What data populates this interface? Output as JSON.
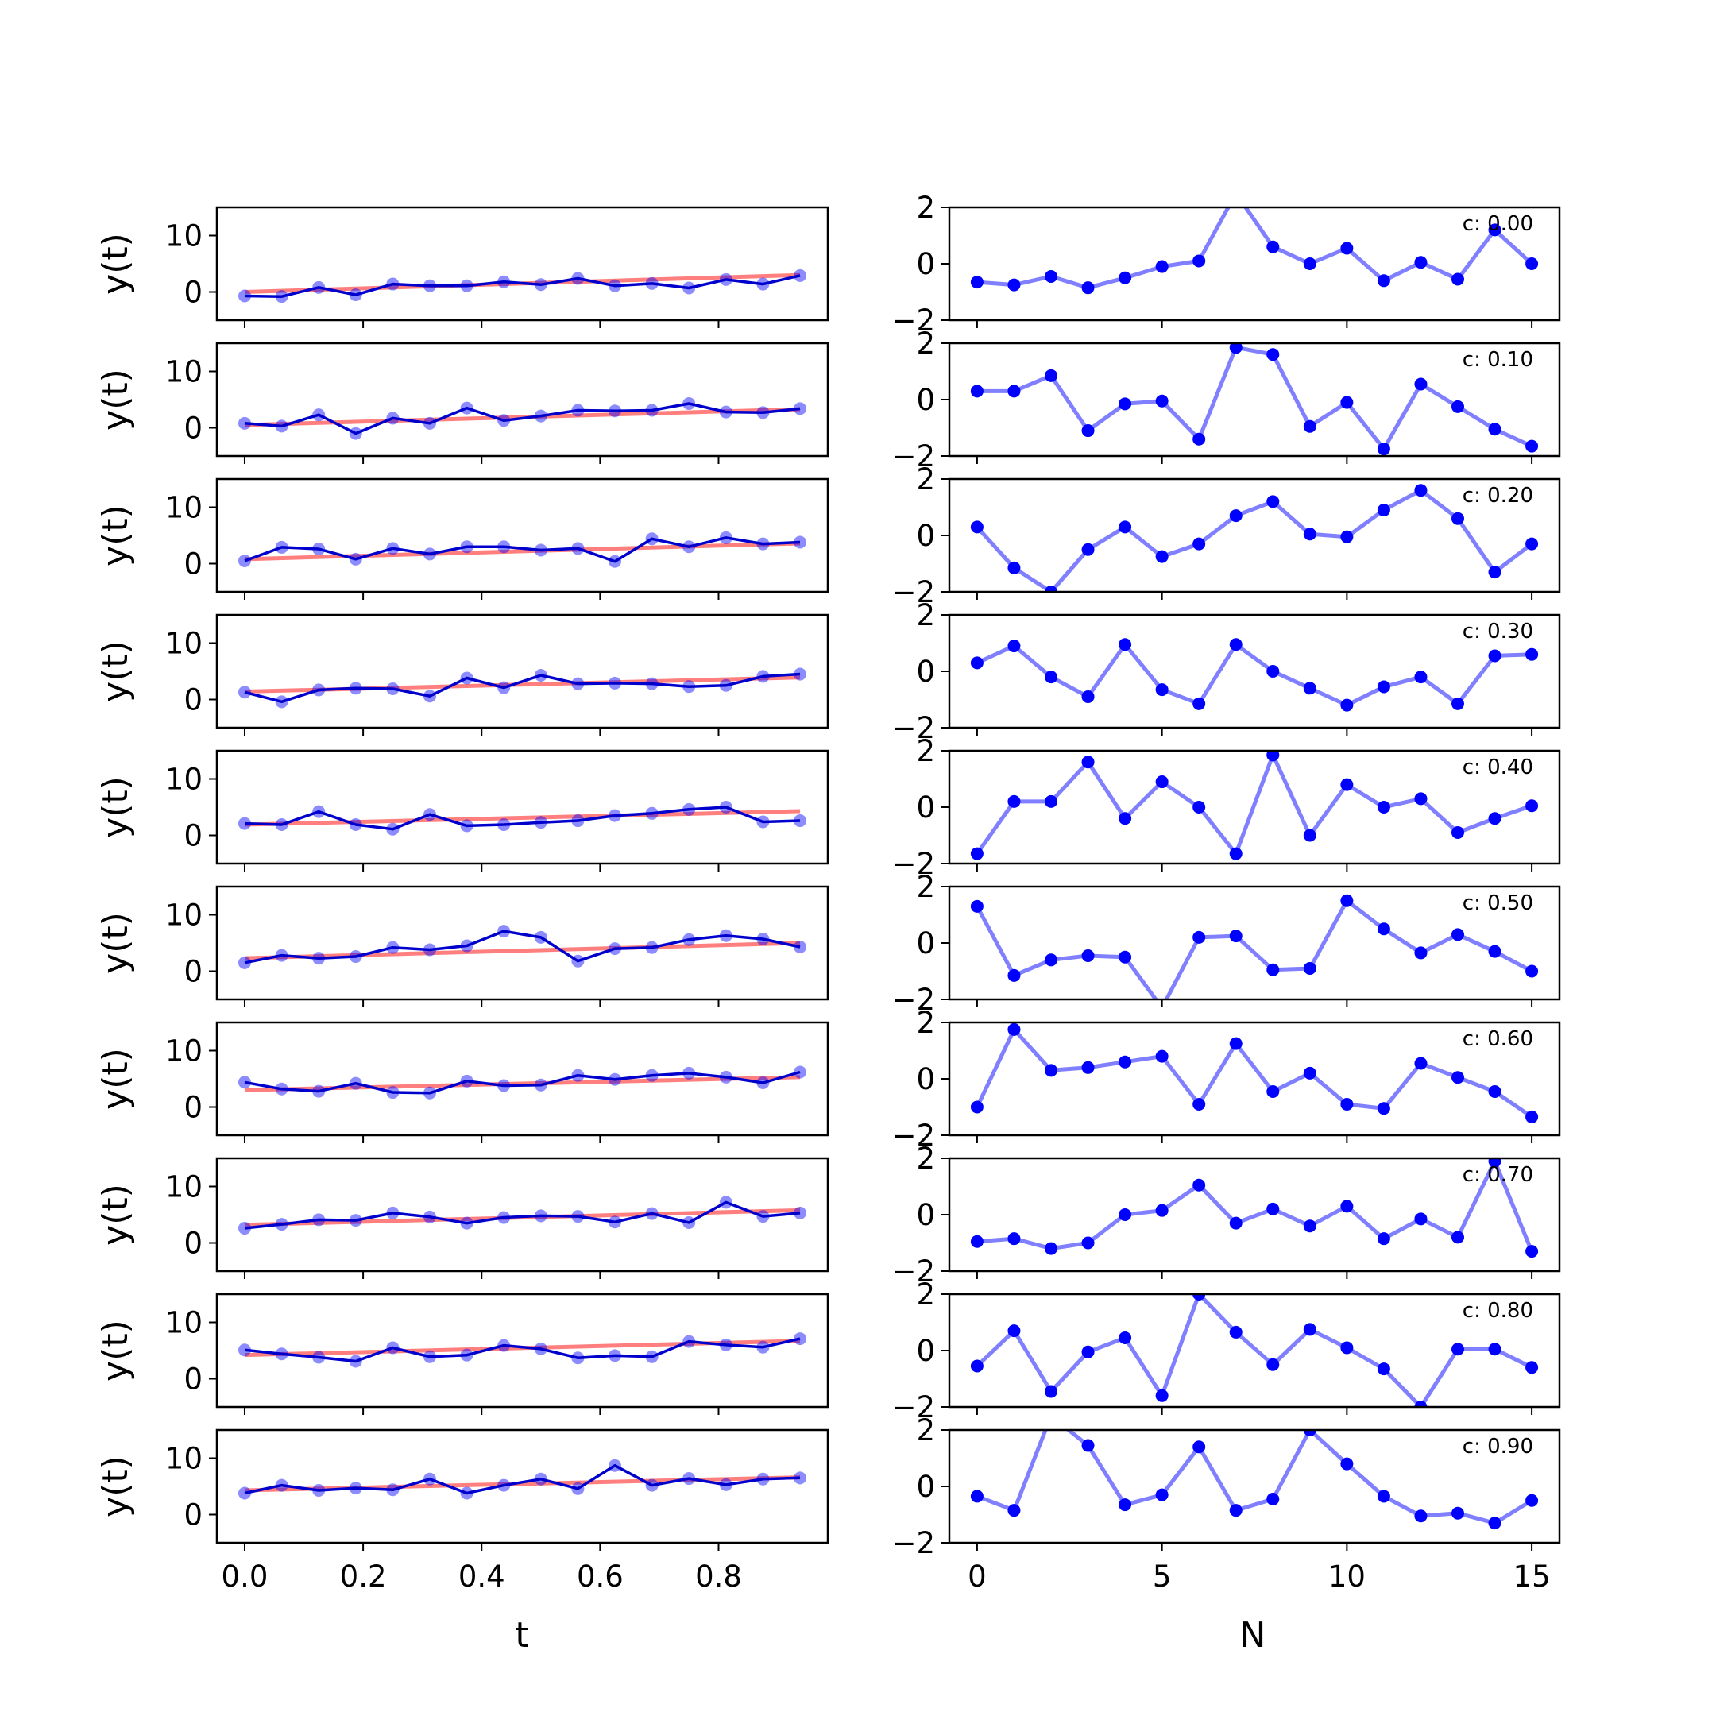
{
  "chart_data": {
    "type": "line",
    "t": [
      0.0,
      0.0625,
      0.125,
      0.1875,
      0.25,
      0.3125,
      0.375,
      0.4375,
      0.5,
      0.5625,
      0.625,
      0.6875,
      0.75,
      0.8125,
      0.875,
      0.9375
    ],
    "left": {
      "xlabel": "t",
      "ylabel": "y(t)",
      "ylim": [
        -5,
        15
      ],
      "xlim": [
        -0.0469,
        0.9844
      ],
      "yticks": [
        0,
        10
      ],
      "xticks": [
        0.0,
        0.2,
        0.4,
        0.6,
        0.8
      ],
      "xtick_labels": [
        "0.0",
        "0.2",
        "0.4",
        "0.6",
        "0.8"
      ],
      "ytick_labels": [
        "0",
        "10"
      ],
      "panels": [
        {
          "trend": [
            0.0,
            3.0
          ],
          "y": [
            -0.7,
            -0.8,
            0.8,
            -0.5,
            1.4,
            1.1,
            1.1,
            1.8,
            1.3,
            2.4,
            1.1,
            1.5,
            0.7,
            2.2,
            1.4,
            2.9
          ]
        },
        {
          "trend": [
            0.5,
            3.3
          ],
          "y": [
            0.8,
            0.3,
            2.3,
            -1.0,
            1.7,
            0.8,
            3.5,
            1.3,
            2.1,
            3.1,
            3.0,
            3.1,
            4.3,
            2.8,
            2.7,
            3.4
          ]
        },
        {
          "trend": [
            0.8,
            3.6
          ],
          "y": [
            0.5,
            2.9,
            2.6,
            0.8,
            2.7,
            1.7,
            3.0,
            3.0,
            2.4,
            2.7,
            0.4,
            4.4,
            3.0,
            4.6,
            3.5,
            3.8
          ]
        },
        {
          "trend": [
            1.4,
            3.9
          ],
          "y": [
            1.3,
            -0.4,
            1.7,
            2.0,
            1.9,
            0.6,
            3.8,
            2.1,
            4.3,
            2.8,
            2.9,
            2.8,
            2.3,
            2.5,
            4.1,
            4.5
          ]
        },
        {
          "trend": [
            1.9,
            4.3
          ],
          "y": [
            2.1,
            1.9,
            4.2,
            1.9,
            1.1,
            3.7,
            1.7,
            1.9,
            2.3,
            2.6,
            3.5,
            3.9,
            4.6,
            5.0,
            2.4,
            2.6
          ]
        },
        {
          "trend": [
            2.3,
            5.0
          ],
          "y": [
            1.5,
            2.8,
            2.3,
            2.6,
            4.2,
            3.8,
            4.5,
            7.1,
            6.0,
            1.8,
            4.0,
            4.2,
            5.6,
            6.3,
            5.7,
            4.3
          ]
        },
        {
          "trend": [
            3.0,
            5.3
          ],
          "y": [
            4.4,
            3.2,
            2.8,
            4.2,
            2.6,
            2.5,
            4.6,
            3.8,
            3.9,
            5.6,
            4.9,
            5.6,
            6.0,
            5.3,
            4.3,
            6.2
          ]
        },
        {
          "trend": [
            3.2,
            5.8
          ],
          "y": [
            2.6,
            3.3,
            4.1,
            4.0,
            5.3,
            4.6,
            3.5,
            4.5,
            4.8,
            4.7,
            3.7,
            5.2,
            3.6,
            7.2,
            4.7,
            5.3
          ]
        },
        {
          "trend": [
            4.2,
            6.7
          ],
          "y": [
            5.1,
            4.4,
            3.8,
            3.1,
            5.5,
            3.9,
            4.2,
            5.9,
            5.3,
            3.7,
            4.1,
            3.9,
            6.6,
            6.0,
            5.6,
            7.1
          ]
        },
        {
          "trend": [
            4.3,
            6.6
          ],
          "y": [
            3.8,
            5.2,
            4.3,
            4.7,
            4.4,
            6.3,
            3.8,
            5.2,
            6.3,
            4.6,
            8.7,
            5.2,
            6.4,
            5.3,
            6.3,
            6.5
          ]
        }
      ]
    },
    "right": {
      "xlabel": "N",
      "ylim": [
        -2,
        2
      ],
      "xlim": [
        -0.75,
        15.75
      ],
      "yticks": [
        -2,
        0,
        2
      ],
      "ytick_labels": [
        "−2",
        "0",
        "2"
      ],
      "xticks": [
        0,
        5,
        10,
        15
      ],
      "xtick_labels": [
        "0",
        "5",
        "10",
        "15"
      ],
      "N": [
        0,
        1,
        2,
        3,
        4,
        5,
        6,
        7,
        8,
        9,
        10,
        11,
        12,
        13,
        14,
        15
      ],
      "panels": [
        {
          "label": "c: 0.00",
          "values": [
            -0.65,
            -0.75,
            -0.45,
            -0.85,
            -0.5,
            -0.1,
            0.1,
            2.5,
            0.6,
            0.0,
            0.55,
            -0.6,
            0.05,
            -0.55,
            1.2,
            0.0
          ]
        },
        {
          "label": "c: 0.10",
          "values": [
            0.3,
            0.3,
            0.85,
            -1.1,
            -0.15,
            -0.05,
            -1.4,
            1.85,
            1.6,
            -0.95,
            -0.1,
            -1.75,
            0.55,
            -0.25,
            -1.05,
            -1.65
          ]
        },
        {
          "label": "c: 0.20",
          "values": [
            0.3,
            -1.15,
            -2.0,
            -0.5,
            0.3,
            -0.75,
            -0.3,
            0.7,
            1.2,
            0.05,
            -0.05,
            0.9,
            1.6,
            0.6,
            -1.3,
            -0.3
          ]
        },
        {
          "label": "c: 0.30",
          "values": [
            0.3,
            0.9,
            -0.2,
            -0.9,
            0.95,
            -0.65,
            -1.15,
            0.95,
            0.0,
            -0.6,
            -1.2,
            -0.55,
            -0.2,
            -1.15,
            0.55,
            0.6
          ]
        },
        {
          "label": "c: 0.40",
          "values": [
            -1.65,
            0.2,
            0.2,
            1.6,
            -0.4,
            0.9,
            0.0,
            -1.65,
            1.85,
            -1.0,
            0.8,
            0.0,
            0.3,
            -0.9,
            -0.4,
            0.05
          ]
        },
        {
          "label": "c: 0.50",
          "values": [
            1.3,
            -1.15,
            -0.6,
            -0.45,
            -0.5,
            -2.3,
            0.2,
            0.25,
            -0.95,
            -0.9,
            1.5,
            0.5,
            -0.35,
            0.3,
            -0.3,
            -1.0
          ]
        },
        {
          "label": "c: 0.60",
          "values": [
            -1.0,
            1.75,
            0.3,
            0.4,
            0.6,
            0.8,
            -0.9,
            1.25,
            -0.45,
            0.2,
            -0.9,
            -1.05,
            0.55,
            0.05,
            -0.45,
            -1.35
          ]
        },
        {
          "label": "c: 0.70",
          "values": [
            -0.95,
            -0.85,
            -1.2,
            -1.0,
            0.0,
            0.15,
            1.05,
            -0.3,
            0.2,
            -0.4,
            0.3,
            -0.85,
            -0.15,
            -0.8,
            1.9,
            -1.3
          ]
        },
        {
          "label": "c: 0.80",
          "values": [
            -0.55,
            0.7,
            -1.45,
            -0.05,
            0.45,
            -1.6,
            2.0,
            0.65,
            -0.5,
            0.75,
            0.1,
            -0.65,
            -2.0,
            0.05,
            0.05,
            -0.6
          ]
        },
        {
          "label": "c: 0.90",
          "values": [
            -0.35,
            -0.85,
            2.5,
            1.45,
            -0.65,
            -0.3,
            1.4,
            -0.85,
            -0.45,
            2.0,
            0.8,
            -0.35,
            -1.05,
            -0.95,
            -1.3,
            -0.5
          ]
        }
      ]
    }
  }
}
